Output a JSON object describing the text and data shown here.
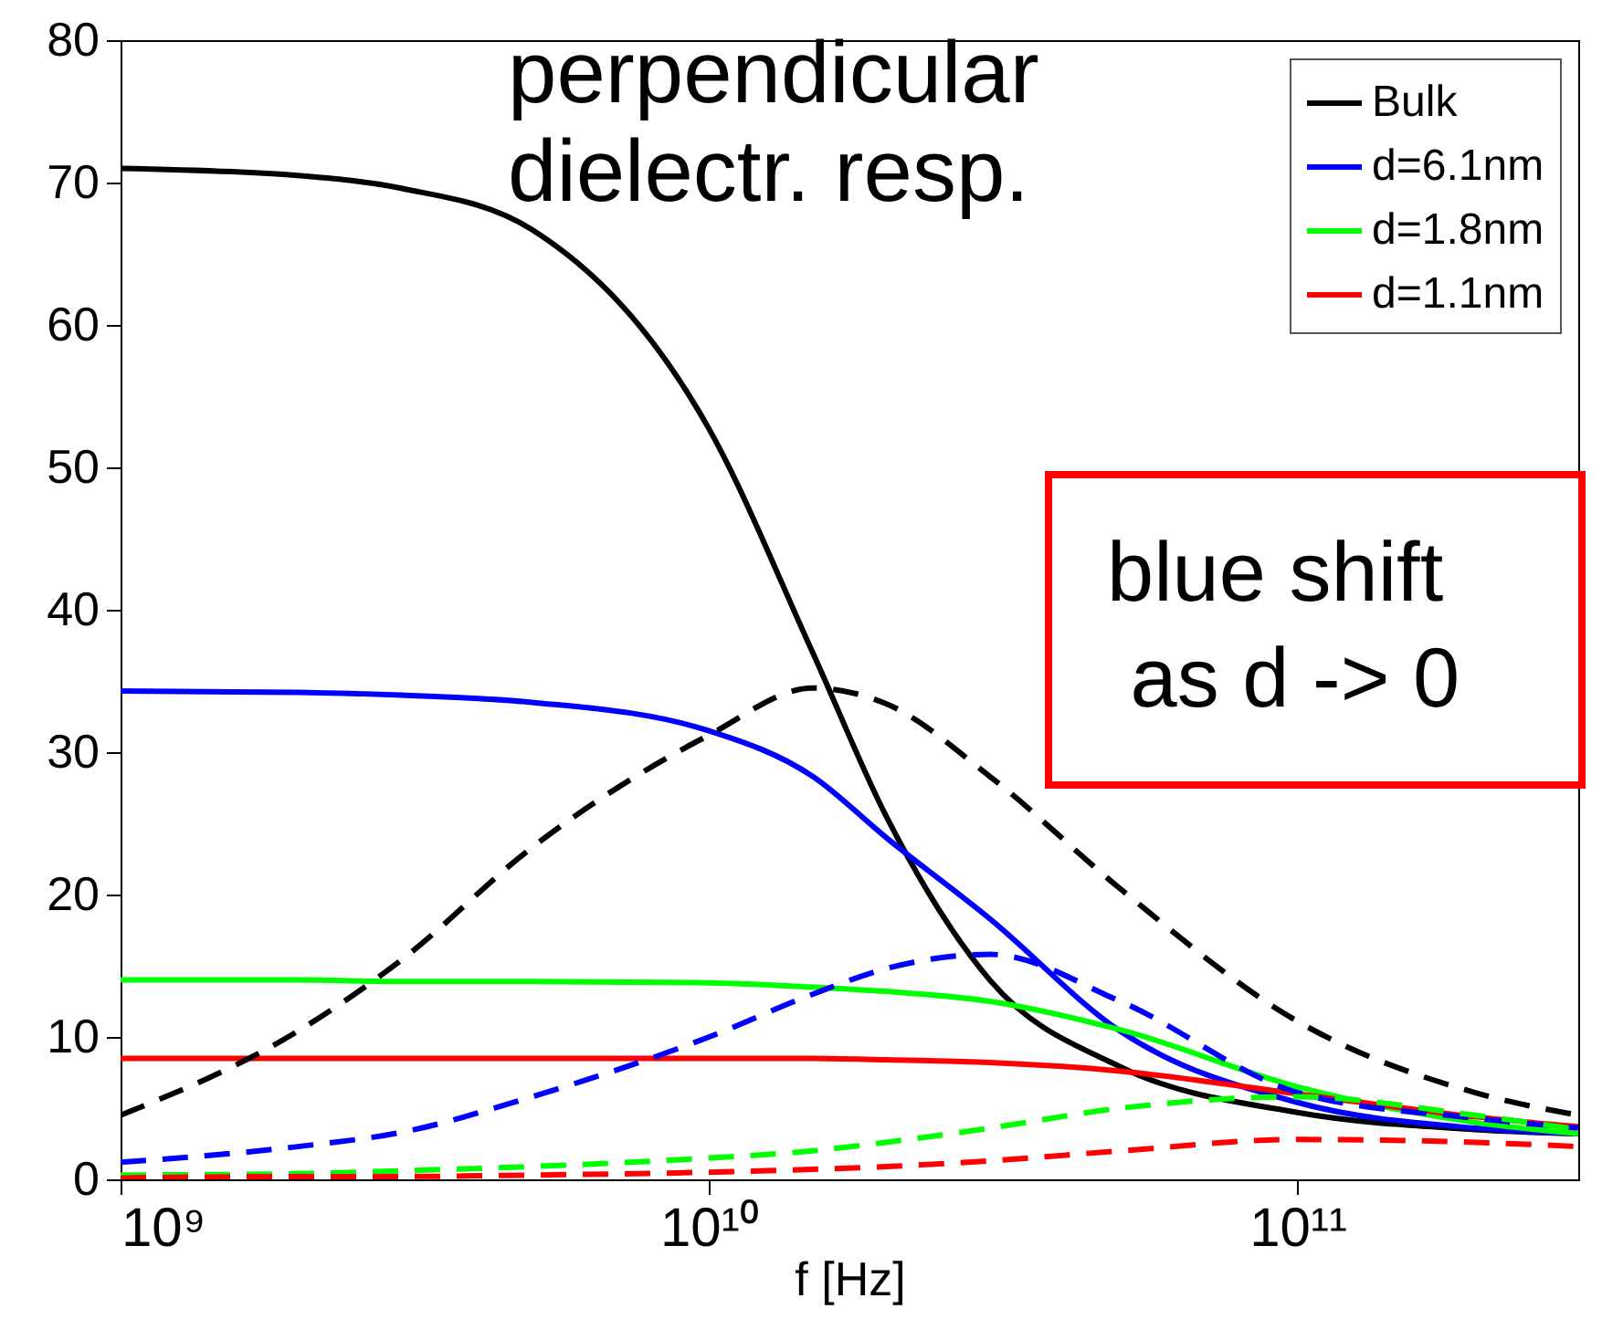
{
  "chart_data": {
    "type": "line",
    "xlabel": "f [Hz]",
    "log": "x",
    "x": [
      1000000000.0,
      2000000000.0,
      3000000000.0,
      5000000000.0,
      10000000000.0,
      15000000000.0,
      20000000000.0,
      30000000000.0,
      50000000000.0,
      100000000000.0,
      200000000000.0,
      300000000000.0
    ],
    "series": [
      {
        "name": "Bulk",
        "color": "#000000",
        "values": [
          71,
          70.5,
          69.6,
          66.7,
          52.7,
          37,
          25.5,
          14,
          7.9,
          4.7,
          3.5,
          3.2
        ]
      },
      {
        "name": "d=6.1nm",
        "color": "#0000ff",
        "values": [
          34.3,
          34.2,
          34,
          33.5,
          31.5,
          28.3,
          24,
          18.3,
          10.4,
          5.4,
          3.6,
          3.2
        ]
      },
      {
        "name": "d=1.8nm",
        "color": "#00ff00",
        "values": [
          14,
          14,
          13.9,
          13.9,
          13.8,
          13.5,
          13.2,
          12.5,
          10.5,
          6.5,
          4,
          3.2
        ]
      },
      {
        "name": "d=1.1nm",
        "color": "#ff0000",
        "values": [
          8.5,
          8.5,
          8.5,
          8.5,
          8.5,
          8.5,
          8.4,
          8.2,
          7.6,
          6,
          4.4,
          3.7
        ]
      },
      {
        "color": "#000000",
        "line_style": "dashed",
        "values": [
          4.5,
          10.4,
          15.4,
          23.3,
          31.2,
          34.5,
          33.4,
          28.3,
          20.4,
          11.1,
          6.1,
          4.5
        ]
      },
      {
        "color": "#0000ff",
        "line_style": "dashed",
        "values": [
          1.2,
          2.3,
          3.3,
          5.8,
          10,
          13,
          14.8,
          15.8,
          12.5,
          6.1,
          4.3,
          3.6
        ]
      },
      {
        "color": "#00ff00",
        "line_style": "dashed",
        "values": [
          0.3,
          0.4,
          0.6,
          0.9,
          1.5,
          2,
          2.6,
          3.6,
          5,
          5.8,
          4.5,
          3.5
        ]
      },
      {
        "color": "#ff0000",
        "line_style": "dashed",
        "values": [
          0.1,
          0.2,
          0.2,
          0.3,
          0.5,
          0.7,
          0.9,
          1.3,
          2,
          2.8,
          2.6,
          2.3
        ]
      }
    ],
    "xlim": [
      1000000000.0,
      300000000000.0
    ],
    "xticks": [
      {
        "value": 1000000000.0,
        "label": "10⁹"
      },
      {
        "value": 10000000000.0,
        "label": "10¹⁰"
      },
      {
        "value": 100000000000.0,
        "label": "10¹¹"
      }
    ],
    "ylim": [
      0,
      80
    ],
    "yticks": [
      0,
      10,
      20,
      30,
      40,
      50,
      60,
      70,
      80
    ],
    "legend": "top right",
    "line_style": "solid",
    "annotations": [
      "perpendicular\ndielectr. resp.",
      "blue shift\n as d -> 0"
    ]
  }
}
